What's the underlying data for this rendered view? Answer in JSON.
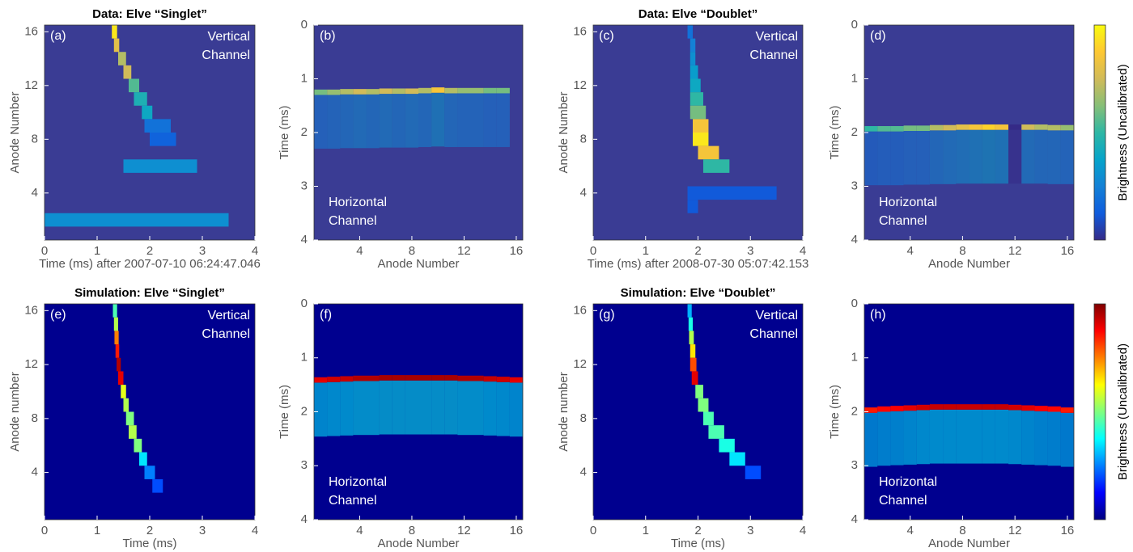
{
  "chart_data": [
    {
      "type": "heatmap",
      "title": "Data: Elve “Singlet”",
      "panel_label": "(a)",
      "annotation": [
        "Vertical",
        "Channel"
      ],
      "xlabel": "Time (ms) after 2007-07-10 06:24:47.046",
      "ylabel": "Anode Number",
      "xlim": [
        0,
        4
      ],
      "ylim": [
        0.5,
        16.5
      ],
      "xticks": [
        0,
        1,
        2,
        3,
        4
      ],
      "yticks": [
        4,
        8,
        12,
        16
      ],
      "background": "#3a3c94",
      "colors": [
        "#352a87",
        "#0f5cdd",
        "#1481d6",
        "#06a4ca",
        "#2eb7a4",
        "#87bf77",
        "#d1bb59",
        "#fec832",
        "#f9fb0e"
      ],
      "x": [
        1.28,
        1.32,
        1.4,
        1.5,
        1.6,
        1.7,
        1.85,
        1.9,
        2.0,
        1.5,
        0.0
      ],
      "x_end": [
        1.38,
        1.42,
        1.55,
        1.65,
        1.8,
        1.95,
        2.05,
        2.4,
        2.5,
        2.9,
        3.5
      ],
      "values": [
        16,
        15,
        14,
        13,
        12,
        11,
        10,
        9,
        8,
        6,
        2
      ],
      "z": [
        0.95,
        0.8,
        0.7,
        0.75,
        0.55,
        0.45,
        0.4,
        0.2,
        0.15,
        0.3,
        0.3
      ]
    },
    {
      "type": "heatmap",
      "panel_label": "(b)",
      "annotation": [
        "Horizontal",
        "Channel"
      ],
      "xlabel": "Anode Number",
      "ylabel": "Time (ms)",
      "xlim": [
        0.5,
        16.5
      ],
      "ylim": [
        4,
        0
      ],
      "xticks": [
        4,
        8,
        12,
        16
      ],
      "yticks": [
        0,
        1,
        2,
        3,
        4
      ],
      "background": "#3a3c94",
      "colors": [
        "#352a87",
        "#0f5cdd",
        "#1481d6",
        "#06a4ca",
        "#2eb7a4",
        "#87bf77",
        "#d1bb59",
        "#fec832",
        "#f9fb0e"
      ],
      "x": [
        1,
        2,
        3,
        4,
        5,
        6,
        7,
        8,
        9,
        10,
        11,
        12,
        13,
        14,
        15
      ],
      "values": [
        1.2,
        1.2,
        1.19,
        1.19,
        1.19,
        1.18,
        1.18,
        1.18,
        1.17,
        1.16,
        1.17,
        1.17,
        1.17,
        1.17,
        1.17
      ],
      "z": [
        0.6,
        0.65,
        0.7,
        0.75,
        0.7,
        0.75,
        0.7,
        0.75,
        0.7,
        0.85,
        0.7,
        0.65,
        0.65,
        0.6,
        0.6
      ]
    },
    {
      "type": "heatmap",
      "title": "Data: Elve “Doublet”",
      "panel_label": "(c)",
      "annotation": [
        "Vertical",
        "Channel"
      ],
      "xlabel": "Time (ms) after 2008-07-30 05:07:42.153",
      "ylabel": "Anode Number",
      "xlim": [
        0,
        4
      ],
      "ylim": [
        0.5,
        16.5
      ],
      "xticks": [
        0,
        1,
        2,
        3,
        4
      ],
      "yticks": [
        4,
        8,
        12,
        16
      ],
      "background": "#3a3c94",
      "colors": [
        "#352a87",
        "#0f5cdd",
        "#1481d6",
        "#06a4ca",
        "#2eb7a4",
        "#87bf77",
        "#d1bb59",
        "#fec832",
        "#f9fb0e"
      ],
      "x": [
        1.8,
        1.85,
        1.85,
        1.85,
        1.85,
        1.85,
        1.85,
        1.9,
        1.9,
        2.0,
        2.1,
        1.8,
        1.8
      ],
      "x_end": [
        1.9,
        1.95,
        1.95,
        2.0,
        2.05,
        2.1,
        2.15,
        2.2,
        2.2,
        2.4,
        2.6,
        3.5,
        2.0
      ],
      "values": [
        16,
        15,
        14,
        13,
        12,
        11,
        10,
        9,
        8,
        7,
        6,
        4,
        3
      ],
      "z": [
        0.2,
        0.25,
        0.3,
        0.35,
        0.4,
        0.5,
        0.6,
        0.85,
        0.95,
        0.85,
        0.5,
        0.12,
        0.12
      ]
    },
    {
      "type": "heatmap",
      "panel_label": "(d)",
      "annotation": [
        "Horizontal",
        "Channel"
      ],
      "xlabel": "Anode Number",
      "ylabel": "Time (ms)",
      "xlim": [
        0.5,
        16.5
      ],
      "ylim": [
        4,
        0
      ],
      "xticks": [
        4,
        8,
        12,
        16
      ],
      "yticks": [
        0,
        1,
        2,
        3,
        4
      ],
      "background": "#3a3c94",
      "colors": [
        "#352a87",
        "#0f5cdd",
        "#1481d6",
        "#06a4ca",
        "#2eb7a4",
        "#87bf77",
        "#d1bb59",
        "#fec832",
        "#f9fb0e"
      ],
      "x": [
        1,
        2,
        3,
        4,
        5,
        6,
        7,
        8,
        9,
        10,
        11,
        12,
        13,
        14,
        15,
        16
      ],
      "values": [
        1.88,
        1.88,
        1.88,
        1.87,
        1.87,
        1.86,
        1.86,
        1.85,
        1.85,
        1.85,
        1.85,
        1.85,
        1.85,
        1.85,
        1.86,
        1.86
      ],
      "z": [
        0.5,
        0.55,
        0.55,
        0.6,
        0.6,
        0.7,
        0.75,
        0.8,
        0.85,
        0.9,
        0.85,
        0.0,
        0.75,
        0.7,
        0.7,
        0.65
      ]
    },
    {
      "type": "colorbar",
      "label": "Brightness (Uncalibrated)",
      "colors": [
        "#352a87",
        "#0f5cdd",
        "#1481d6",
        "#06a4ca",
        "#2eb7a4",
        "#87bf77",
        "#d1bb59",
        "#fec832",
        "#f9fb0e"
      ]
    },
    {
      "type": "heatmap",
      "title": "Simulation: Elve “Singlet”",
      "panel_label": "(e)",
      "annotation": [
        "Vertical",
        "Channel"
      ],
      "xlabel": "Time (ms)",
      "ylabel": "Anode number",
      "xlim": [
        0,
        4
      ],
      "ylim": [
        0.5,
        16.5
      ],
      "xticks": [
        0,
        1,
        2,
        3,
        4
      ],
      "yticks": [
        4,
        8,
        12,
        16
      ],
      "background": "#00008f",
      "colors": [
        "#00007f",
        "#0000ff",
        "#007fff",
        "#00ffff",
        "#7fff7f",
        "#ffff00",
        "#ff7f00",
        "#ff0000",
        "#7f0000"
      ],
      "x": [
        1.3,
        1.32,
        1.33,
        1.35,
        1.37,
        1.4,
        1.45,
        1.5,
        1.55,
        1.6,
        1.7,
        1.8,
        1.9,
        2.05
      ],
      "x_end": [
        1.38,
        1.4,
        1.41,
        1.42,
        1.45,
        1.5,
        1.55,
        1.6,
        1.7,
        1.75,
        1.85,
        1.95,
        2.1,
        2.25
      ],
      "values": [
        16,
        15,
        14,
        13,
        12,
        11,
        10,
        9,
        8,
        7,
        6,
        5,
        4,
        3
      ],
      "z": [
        0.45,
        0.55,
        0.75,
        0.85,
        0.95,
        0.9,
        0.6,
        0.55,
        0.5,
        0.55,
        0.5,
        0.35,
        0.25,
        0.2
      ]
    },
    {
      "type": "heatmap",
      "panel_label": "(f)",
      "annotation": [
        "Horizontal",
        "Channel"
      ],
      "xlabel": "Anode Number",
      "ylabel": "Time (ms)",
      "xlim": [
        0.5,
        16.5
      ],
      "ylim": [
        4,
        0
      ],
      "xticks": [
        4,
        8,
        12,
        16
      ],
      "yticks": [
        0,
        1,
        2,
        3,
        4
      ],
      "background": "#00008f",
      "colors": [
        "#00007f",
        "#0000ff",
        "#007fff",
        "#00ffff",
        "#7fff7f",
        "#ffff00",
        "#ff7f00",
        "#ff0000",
        "#7f0000"
      ],
      "x": [
        1,
        2,
        3,
        4,
        5,
        6,
        7,
        8,
        9,
        10,
        11,
        12,
        13,
        14,
        15,
        16
      ],
      "values": [
        1.36,
        1.35,
        1.34,
        1.33,
        1.33,
        1.32,
        1.32,
        1.32,
        1.32,
        1.32,
        1.32,
        1.33,
        1.33,
        1.34,
        1.35,
        1.36
      ],
      "z": [
        0.9,
        0.92,
        0.93,
        0.95,
        0.95,
        0.96,
        0.96,
        0.96,
        0.96,
        0.96,
        0.96,
        0.95,
        0.95,
        0.93,
        0.92,
        0.9
      ]
    },
    {
      "type": "heatmap",
      "title": "Simulation: Elve “Doublet”",
      "panel_label": "(g)",
      "annotation": [
        "Vertical",
        "Channel"
      ],
      "xlabel": "Time (ms)",
      "ylabel": "Anode number",
      "xlim": [
        0,
        4
      ],
      "ylim": [
        0.5,
        16.5
      ],
      "xticks": [
        0,
        1,
        2,
        3,
        4
      ],
      "yticks": [
        4,
        8,
        12,
        16
      ],
      "background": "#00008f",
      "colors": [
        "#00007f",
        "#0000ff",
        "#007fff",
        "#00ffff",
        "#7fff7f",
        "#ffff00",
        "#ff7f00",
        "#ff0000",
        "#7f0000"
      ],
      "x": [
        1.8,
        1.82,
        1.83,
        1.85,
        1.85,
        1.88,
        1.95,
        2.0,
        2.1,
        2.2,
        2.4,
        2.6,
        2.9
      ],
      "x_end": [
        1.88,
        1.9,
        1.92,
        1.95,
        1.97,
        2.0,
        2.1,
        2.2,
        2.3,
        2.5,
        2.7,
        2.9,
        3.2
      ],
      "values": [
        16,
        15,
        14,
        13,
        12,
        11,
        10,
        9,
        8,
        7,
        6,
        5,
        4
      ],
      "z": [
        0.3,
        0.4,
        0.55,
        0.65,
        0.8,
        0.9,
        0.5,
        0.5,
        0.45,
        0.45,
        0.4,
        0.35,
        0.2
      ]
    },
    {
      "type": "heatmap",
      "panel_label": "(h)",
      "annotation": [
        "Horizontal",
        "Channel"
      ],
      "xlabel": "Anode Number",
      "ylabel": "Time (ms)",
      "xlim": [
        0.5,
        16.5
      ],
      "ylim": [
        4,
        0
      ],
      "xticks": [
        4,
        8,
        12,
        16
      ],
      "yticks": [
        0,
        1,
        2,
        3,
        4
      ],
      "background": "#00008f",
      "colors": [
        "#00007f",
        "#0000ff",
        "#007fff",
        "#00ffff",
        "#7fff7f",
        "#ffff00",
        "#ff7f00",
        "#ff0000",
        "#7f0000"
      ],
      "x": [
        1,
        2,
        3,
        4,
        5,
        6,
        7,
        8,
        9,
        10,
        11,
        12,
        13,
        14,
        15,
        16
      ],
      "values": [
        1.92,
        1.9,
        1.89,
        1.88,
        1.87,
        1.86,
        1.86,
        1.86,
        1.86,
        1.86,
        1.86,
        1.87,
        1.88,
        1.89,
        1.9,
        1.92
      ],
      "z": [
        0.85,
        0.87,
        0.88,
        0.9,
        0.92,
        0.93,
        0.93,
        0.93,
        0.93,
        0.93,
        0.93,
        0.92,
        0.9,
        0.88,
        0.87,
        0.85
      ]
    },
    {
      "type": "colorbar",
      "label": "Brightness (Uncalibrated)",
      "colors": [
        "#00007f",
        "#0000ff",
        "#007fff",
        "#00ffff",
        "#7fff7f",
        "#ffff00",
        "#ff7f00",
        "#ff0000",
        "#7f0000"
      ]
    }
  ]
}
